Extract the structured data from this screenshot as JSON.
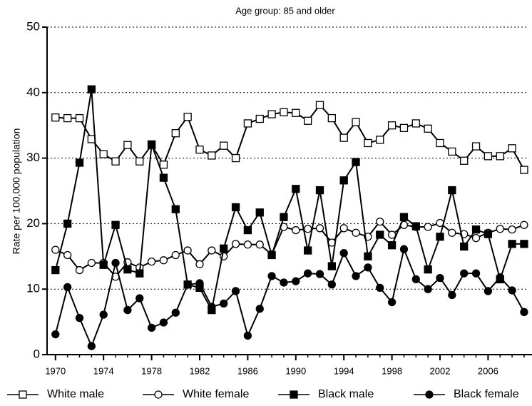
{
  "chart_data": {
    "type": "line",
    "title": "Age group: 85 and older",
    "y_label": "Rate per 100,000 population",
    "x": [
      1970,
      1971,
      1972,
      1973,
      1974,
      1975,
      1976,
      1977,
      1978,
      1979,
      1980,
      1981,
      1982,
      1983,
      1984,
      1985,
      1986,
      1987,
      1988,
      1989,
      1990,
      1991,
      1992,
      1993,
      1994,
      1995,
      1996,
      1997,
      1998,
      1999,
      2000,
      2001,
      2002,
      2003,
      2004,
      2005,
      2006,
      2007,
      2008,
      2009
    ],
    "xlim": [
      1969.3,
      2009.3
    ],
    "xticks": [
      1970,
      1974,
      1978,
      1982,
      1986,
      1990,
      1994,
      1998,
      2002,
      2006
    ],
    "ylim": [
      0,
      50
    ],
    "yticks": [
      0,
      10,
      20,
      30,
      40,
      50
    ],
    "grid": true,
    "legend": "bottom",
    "series": [
      {
        "name": "White male",
        "color": "#000000",
        "marker": "square-open",
        "values": [
          36.2,
          36.1,
          36.1,
          32.9,
          30.6,
          29.5,
          32.0,
          29.5,
          32.0,
          29.0,
          33.8,
          36.3,
          31.3,
          30.4,
          31.9,
          30.0,
          35.3,
          36.0,
          36.7,
          37.0,
          36.9,
          35.7,
          38.1,
          36.1,
          33.1,
          35.5,
          32.3,
          32.8,
          35.0,
          34.6,
          35.3,
          34.5,
          32.3,
          31.0,
          29.6,
          31.8,
          30.3,
          30.3,
          31.5,
          28.2
        ]
      },
      {
        "name": "White female",
        "color": "#000000",
        "marker": "circle-open",
        "values": [
          16.0,
          15.2,
          12.9,
          14.0,
          14.0,
          11.9,
          14.1,
          13.3,
          14.2,
          14.4,
          15.2,
          15.9,
          13.8,
          15.9,
          15.0,
          16.9,
          16.8,
          16.8,
          15.3,
          19.5,
          19.0,
          19.2,
          19.3,
          17.1,
          19.3,
          18.6,
          18.0,
          20.3,
          18.3,
          19.8,
          19.5,
          19.5,
          20.1,
          18.6,
          18.4,
          17.8,
          18.6,
          19.2,
          19.1,
          19.8
        ]
      },
      {
        "name": "Black male",
        "color": "#000000",
        "marker": "square-filled",
        "values": [
          12.9,
          20.0,
          29.3,
          40.5,
          13.7,
          19.8,
          13.0,
          12.4,
          32.1,
          27.0,
          22.2,
          10.7,
          10.2,
          6.8,
          16.2,
          22.5,
          19.0,
          21.7,
          15.2,
          21.0,
          25.3,
          15.9,
          25.1,
          13.5,
          26.6,
          29.4,
          15.0,
          18.3,
          16.7,
          21.0,
          19.6,
          13.0,
          18.0,
          25.1,
          16.5,
          19.1,
          18.4,
          11.5,
          16.9,
          16.9
        ]
      },
      {
        "name": "Black female",
        "color": "#000000",
        "marker": "circle-filled",
        "values": [
          3.1,
          10.3,
          5.6,
          1.3,
          6.1,
          14.0,
          6.8,
          8.6,
          4.1,
          4.9,
          6.4,
          10.7,
          10.9,
          7.3,
          7.8,
          9.7,
          2.9,
          7.0,
          12.0,
          11.0,
          11.2,
          12.4,
          12.3,
          10.7,
          15.5,
          12.0,
          13.3,
          10.2,
          8.0,
          16.1,
          11.5,
          10.0,
          11.7,
          9.1,
          12.4,
          12.4,
          9.7,
          11.8,
          9.8,
          6.5
        ]
      }
    ]
  }
}
